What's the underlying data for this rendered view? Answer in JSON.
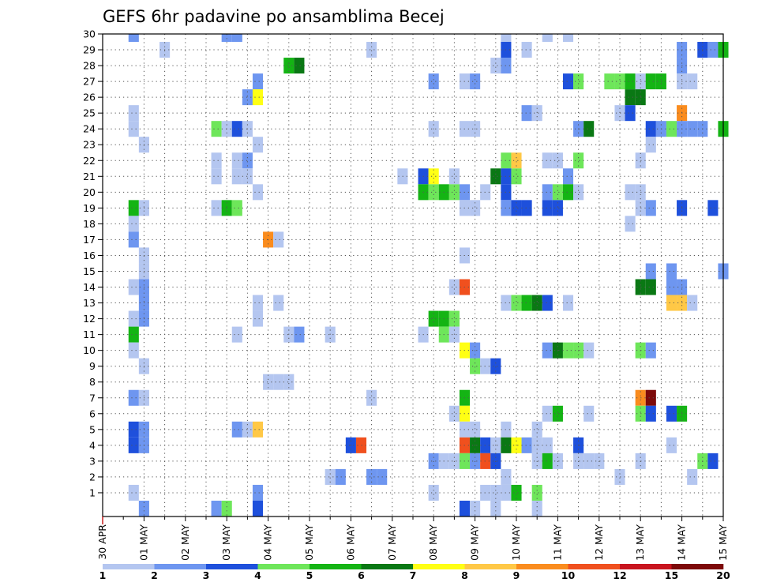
{
  "chart_data": {
    "type": "heatmap",
    "title": "GEFS 6hr padavine po ansamblima Becej",
    "xlabel": "",
    "ylabel": "",
    "x_tick_labels": [
      "30 APR",
      "01 MAY",
      "02 MAY",
      "03 MAY",
      "04 MAY",
      "05 MAY",
      "06 MAY",
      "07 MAY",
      "08 MAY",
      "09 MAY",
      "10 MAY",
      "11 MAY",
      "12 MAY",
      "13 MAY",
      "14 MAY",
      "15 MAY"
    ],
    "y_tick_labels": [
      "1",
      "2",
      "3",
      "4",
      "5",
      "6",
      "7",
      "8",
      "9",
      "10",
      "11",
      "12",
      "13",
      "14",
      "15",
      "16",
      "17",
      "18",
      "19",
      "20",
      "21",
      "22",
      "23",
      "24",
      "25",
      "26",
      "27",
      "28",
      "29",
      "30"
    ],
    "x_range_days": [
      0,
      15
    ],
    "y_range": [
      0,
      30
    ],
    "time_step_hours": 6,
    "grid": "dotted",
    "colorbar": {
      "placement": "bottom",
      "labels": [
        "1",
        "2",
        "3",
        "4",
        "5",
        "6",
        "7",
        "8",
        "9",
        "10",
        "12",
        "15",
        "20"
      ],
      "colors": [
        "#b4c6f0",
        "#6e96f0",
        "#1e50dc",
        "#6ee65a",
        "#14b414",
        "#0a7814",
        "#ffff14",
        "#ffc846",
        "#fa8c1e",
        "#f0501e",
        "#c8141e",
        "#7d0a0a"
      ]
    },
    "points": [
      [
        0.75,
        30,
        2
      ],
      [
        1.5,
        29,
        1
      ],
      [
        3.0,
        30,
        2
      ],
      [
        3.25,
        30,
        2
      ],
      [
        9.75,
        30,
        1
      ],
      [
        10.75,
        30,
        1
      ],
      [
        11.25,
        30,
        1
      ],
      [
        6.5,
        29,
        1
      ],
      [
        9.75,
        29,
        3
      ],
      [
        10.25,
        29,
        1
      ],
      [
        14.0,
        29,
        2
      ],
      [
        14.5,
        29,
        3
      ],
      [
        14.75,
        29,
        2
      ],
      [
        15.0,
        29,
        5
      ],
      [
        4.5,
        28,
        5
      ],
      [
        4.75,
        28,
        6
      ],
      [
        9.5,
        28,
        1
      ],
      [
        9.75,
        28,
        2
      ],
      [
        14.0,
        28,
        2
      ],
      [
        3.75,
        27,
        2
      ],
      [
        8.0,
        27,
        2
      ],
      [
        8.75,
        27,
        1
      ],
      [
        9.0,
        27,
        2
      ],
      [
        11.25,
        27,
        3
      ],
      [
        11.5,
        27,
        4
      ],
      [
        12.25,
        27,
        4
      ],
      [
        12.5,
        27,
        4
      ],
      [
        12.75,
        27,
        5
      ],
      [
        13.0,
        27,
        1
      ],
      [
        13.25,
        27,
        5
      ],
      [
        13.5,
        27,
        5
      ],
      [
        14.0,
        27,
        1
      ],
      [
        14.25,
        27,
        1
      ],
      [
        3.5,
        26,
        2
      ],
      [
        3.75,
        26,
        7
      ],
      [
        12.75,
        26,
        6
      ],
      [
        13.0,
        26,
        6
      ],
      [
        0.75,
        25,
        1
      ],
      [
        10.25,
        25,
        2
      ],
      [
        10.5,
        25,
        1
      ],
      [
        12.5,
        25,
        1
      ],
      [
        12.75,
        25,
        3
      ],
      [
        14.0,
        25,
        9
      ],
      [
        0.75,
        24,
        1
      ],
      [
        2.75,
        24,
        4
      ],
      [
        3.0,
        24,
        1
      ],
      [
        3.25,
        24,
        3
      ],
      [
        3.5,
        24,
        1
      ],
      [
        8.0,
        24,
        1
      ],
      [
        8.75,
        24,
        1
      ],
      [
        9.0,
        24,
        1
      ],
      [
        11.5,
        24,
        2
      ],
      [
        11.75,
        24,
        6
      ],
      [
        13.25,
        24,
        3
      ],
      [
        13.5,
        24,
        2
      ],
      [
        13.75,
        24,
        4
      ],
      [
        14.0,
        24,
        2
      ],
      [
        14.25,
        24,
        2
      ],
      [
        14.5,
        24,
        2
      ],
      [
        15.0,
        24,
        5
      ],
      [
        1.0,
        23,
        1
      ],
      [
        3.75,
        23,
        1
      ],
      [
        13.25,
        23,
        1
      ],
      [
        2.75,
        22,
        1
      ],
      [
        3.25,
        22,
        1
      ],
      [
        3.5,
        22,
        2
      ],
      [
        9.75,
        22,
        4
      ],
      [
        10.0,
        22,
        8
      ],
      [
        10.75,
        22,
        1
      ],
      [
        11.0,
        22,
        1
      ],
      [
        11.5,
        22,
        4
      ],
      [
        13.0,
        22,
        1
      ],
      [
        2.75,
        21,
        1
      ],
      [
        3.25,
        21,
        1
      ],
      [
        3.5,
        21,
        1
      ],
      [
        7.25,
        21,
        1
      ],
      [
        7.75,
        21,
        3
      ],
      [
        8.0,
        21,
        7
      ],
      [
        8.5,
        21,
        1
      ],
      [
        9.5,
        21,
        6
      ],
      [
        9.75,
        21,
        3
      ],
      [
        10.0,
        21,
        4
      ],
      [
        11.25,
        21,
        2
      ],
      [
        3.75,
        20,
        1
      ],
      [
        7.75,
        20,
        5
      ],
      [
        8.0,
        20,
        4
      ],
      [
        8.25,
        20,
        5
      ],
      [
        8.5,
        20,
        4
      ],
      [
        8.75,
        20,
        2
      ],
      [
        9.25,
        20,
        1
      ],
      [
        9.75,
        20,
        3
      ],
      [
        10.75,
        20,
        2
      ],
      [
        11.0,
        20,
        4
      ],
      [
        11.25,
        20,
        5
      ],
      [
        11.5,
        20,
        1
      ],
      [
        12.75,
        20,
        1
      ],
      [
        13.0,
        20,
        1
      ],
      [
        0.75,
        19,
        5
      ],
      [
        1.0,
        19,
        1
      ],
      [
        2.75,
        19,
        1
      ],
      [
        3.0,
        19,
        5
      ],
      [
        3.25,
        19,
        4
      ],
      [
        8.75,
        19,
        1
      ],
      [
        9.0,
        19,
        1
      ],
      [
        9.75,
        19,
        2
      ],
      [
        10.0,
        19,
        3
      ],
      [
        10.25,
        19,
        3
      ],
      [
        10.75,
        19,
        3
      ],
      [
        11.0,
        19,
        3
      ],
      [
        13.0,
        19,
        1
      ],
      [
        13.25,
        19,
        2
      ],
      [
        14.0,
        19,
        3
      ],
      [
        14.75,
        19,
        3
      ],
      [
        0.75,
        18,
        1
      ],
      [
        12.75,
        18,
        1
      ],
      [
        0.75,
        17,
        2
      ],
      [
        4.0,
        17,
        9
      ],
      [
        4.25,
        17,
        1
      ],
      [
        1.0,
        16,
        1
      ],
      [
        8.75,
        16,
        1
      ],
      [
        1.0,
        15,
        1
      ],
      [
        13.25,
        15,
        2
      ],
      [
        13.75,
        15,
        2
      ],
      [
        15.0,
        15,
        2
      ],
      [
        0.75,
        14,
        1
      ],
      [
        1.0,
        14,
        2
      ],
      [
        8.5,
        14,
        1
      ],
      [
        8.75,
        14,
        10
      ],
      [
        13.0,
        14,
        6
      ],
      [
        13.25,
        14,
        6
      ],
      [
        13.75,
        14,
        2
      ],
      [
        14.0,
        14,
        2
      ],
      [
        1.0,
        13,
        2
      ],
      [
        3.75,
        13,
        1
      ],
      [
        4.25,
        13,
        1
      ],
      [
        9.75,
        13,
        1
      ],
      [
        10.0,
        13,
        4
      ],
      [
        10.25,
        13,
        5
      ],
      [
        10.5,
        13,
        6
      ],
      [
        10.75,
        13,
        3
      ],
      [
        11.25,
        13,
        1
      ],
      [
        13.75,
        13,
        8
      ],
      [
        14.0,
        13,
        8
      ],
      [
        14.25,
        13,
        1
      ],
      [
        0.75,
        12,
        1
      ],
      [
        1.0,
        12,
        2
      ],
      [
        3.75,
        12,
        1
      ],
      [
        8.0,
        12,
        5
      ],
      [
        8.25,
        12,
        5
      ],
      [
        8.5,
        12,
        4
      ],
      [
        0.75,
        11,
        5
      ],
      [
        3.25,
        11,
        1
      ],
      [
        4.5,
        11,
        1
      ],
      [
        4.75,
        11,
        2
      ],
      [
        5.5,
        11,
        1
      ],
      [
        7.75,
        11,
        1
      ],
      [
        8.25,
        11,
        4
      ],
      [
        8.5,
        11,
        1
      ],
      [
        0.75,
        10,
        1
      ],
      [
        8.75,
        10,
        7
      ],
      [
        9.0,
        10,
        2
      ],
      [
        10.75,
        10,
        2
      ],
      [
        11.0,
        10,
        6
      ],
      [
        11.25,
        10,
        4
      ],
      [
        11.5,
        10,
        4
      ],
      [
        11.75,
        10,
        1
      ],
      [
        13.0,
        10,
        4
      ],
      [
        13.25,
        10,
        2
      ],
      [
        1.0,
        9,
        1
      ],
      [
        9.0,
        9,
        4
      ],
      [
        9.25,
        9,
        1
      ],
      [
        9.5,
        9,
        3
      ],
      [
        4.0,
        8,
        1
      ],
      [
        4.25,
        8,
        1
      ],
      [
        4.5,
        8,
        1
      ],
      [
        0.75,
        7,
        2
      ],
      [
        1.0,
        7,
        1
      ],
      [
        6.5,
        7,
        1
      ],
      [
        8.75,
        7,
        5
      ],
      [
        13.0,
        7,
        9
      ],
      [
        13.25,
        7,
        12
      ],
      [
        8.5,
        6,
        1
      ],
      [
        8.75,
        6,
        7
      ],
      [
        10.75,
        6,
        1
      ],
      [
        11.0,
        6,
        5
      ],
      [
        11.75,
        6,
        1
      ],
      [
        13.0,
        6,
        4
      ],
      [
        13.25,
        6,
        3
      ],
      [
        13.75,
        6,
        3
      ],
      [
        14.0,
        6,
        5
      ],
      [
        0.75,
        5,
        3
      ],
      [
        1.0,
        5,
        2
      ],
      [
        3.25,
        5,
        2
      ],
      [
        3.5,
        5,
        1
      ],
      [
        3.75,
        5,
        8
      ],
      [
        8.75,
        5,
        1
      ],
      [
        9.0,
        5,
        1
      ],
      [
        9.75,
        5,
        1
      ],
      [
        10.5,
        5,
        1
      ],
      [
        0.75,
        4,
        3
      ],
      [
        1.0,
        4,
        2
      ],
      [
        6.0,
        4,
        3
      ],
      [
        6.25,
        4,
        10
      ],
      [
        8.75,
        4,
        10
      ],
      [
        9.0,
        4,
        6
      ],
      [
        9.25,
        4,
        3
      ],
      [
        9.5,
        4,
        1
      ],
      [
        9.75,
        4,
        6
      ],
      [
        10.0,
        4,
        7
      ],
      [
        10.25,
        4,
        2
      ],
      [
        10.5,
        4,
        1
      ],
      [
        10.75,
        4,
        1
      ],
      [
        11.5,
        4,
        3
      ],
      [
        13.75,
        4,
        1
      ],
      [
        8.0,
        3,
        2
      ],
      [
        8.25,
        3,
        1
      ],
      [
        8.5,
        3,
        1
      ],
      [
        8.75,
        3,
        4
      ],
      [
        9.0,
        3,
        2
      ],
      [
        9.25,
        3,
        10
      ],
      [
        9.5,
        3,
        3
      ],
      [
        10.5,
        3,
        1
      ],
      [
        10.75,
        3,
        5
      ],
      [
        11.0,
        3,
        1
      ],
      [
        11.5,
        3,
        1
      ],
      [
        11.75,
        3,
        1
      ],
      [
        12.0,
        3,
        1
      ],
      [
        13.0,
        3,
        1
      ],
      [
        14.5,
        3,
        4
      ],
      [
        14.75,
        3,
        3
      ],
      [
        5.5,
        2,
        1
      ],
      [
        5.75,
        2,
        2
      ],
      [
        6.5,
        2,
        2
      ],
      [
        6.75,
        2,
        2
      ],
      [
        9.75,
        2,
        1
      ],
      [
        12.5,
        2,
        1
      ],
      [
        14.25,
        2,
        1
      ],
      [
        0.75,
        1,
        1
      ],
      [
        3.75,
        1,
        2
      ],
      [
        8.0,
        1,
        1
      ],
      [
        9.25,
        1,
        1
      ],
      [
        9.5,
        1,
        1
      ],
      [
        9.75,
        1,
        1
      ],
      [
        10.0,
        1,
        5
      ],
      [
        10.5,
        1,
        4
      ],
      [
        1.0,
        0,
        2
      ],
      [
        2.75,
        0,
        2
      ],
      [
        3.0,
        0,
        4
      ],
      [
        3.75,
        0,
        3
      ],
      [
        8.75,
        0,
        3
      ],
      [
        9.0,
        0,
        1
      ],
      [
        9.5,
        0,
        1
      ],
      [
        10.5,
        0,
        1
      ]
    ]
  }
}
